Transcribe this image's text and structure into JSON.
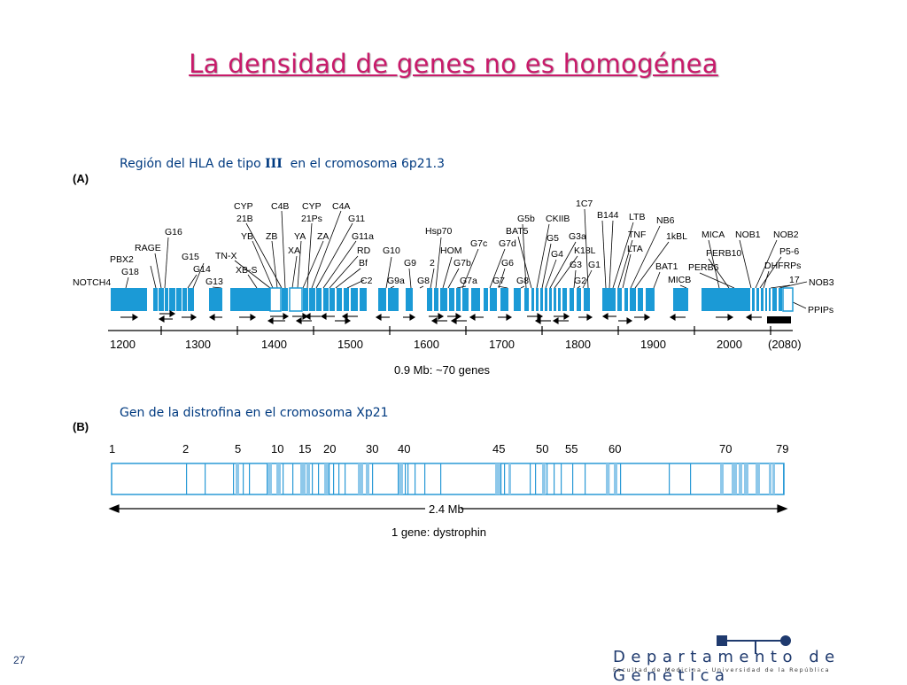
{
  "title": "La densidad de genes no es homogénea",
  "panel_a": {
    "caption_prefix": "Región del HLA de tipo ",
    "caption_roman": "III",
    "caption_suffix": "  en el cromosoma 6p21.3",
    "label": "(A)",
    "axis_ticks": [
      "1200",
      "1300",
      "1400",
      "1500",
      "1600",
      "1700",
      "1800",
      "1900",
      "2000",
      "(2080)"
    ],
    "summary": "0.9 Mb: ~70 genes",
    "gene_labels": [
      "CYP",
      "21B",
      "C4B",
      "CYP",
      "21Ps",
      "C4A",
      "G11",
      "1C7",
      "B144",
      "LTB",
      "G5b",
      "CKIIB",
      "NB6",
      "BAT5",
      "Hsp70",
      "G16",
      "YB",
      "ZB",
      "YA",
      "ZA",
      "G11a",
      "G5",
      "G3a",
      "TNF",
      "1kBL",
      "MICA",
      "NOB1",
      "NOB2",
      "RAGE",
      "G7c",
      "G7d",
      "TN-X",
      "XA",
      "RD",
      "G10",
      "HOM",
      "K18L",
      "LTA",
      "PBX2",
      "G15",
      "G4",
      "P5-6",
      "Bf",
      "G9",
      "2",
      "G7b",
      "G6",
      "G3",
      "G1",
      "BAT1",
      "PERB10",
      "G14",
      "XB-S",
      "PERB6",
      "DHFRPs",
      "G18",
      "C2",
      "G9a",
      "G8",
      "G7a",
      "G7",
      "G8",
      "G2",
      "MICB",
      "17",
      "G13",
      "NOTCH4",
      "NOB3",
      "PPIPs"
    ]
  },
  "panel_b": {
    "caption": "Gen de la distrofina en el cromosoma Xp21",
    "label": "(B)",
    "exon_labels": [
      "1",
      "2",
      "5",
      "10",
      "15",
      "20",
      "30",
      "40",
      "45",
      "50",
      "55",
      "60",
      "70",
      "79"
    ],
    "scale": "2.4 Mb",
    "summary": "1 gene: dystrophin"
  },
  "footer": {
    "brand": "Departamento de Genética",
    "subtitle": "Facultad de Medicina · Universidad de la República",
    "page_number": "27"
  },
  "colors": {
    "title": "#c81a6a",
    "caption": "#003a80",
    "gene_fill": "#1b9ad6",
    "exon_fill": "#8ec8ea",
    "exon_outline": "#2a9ad6",
    "brand": "#1f3a6e"
  }
}
